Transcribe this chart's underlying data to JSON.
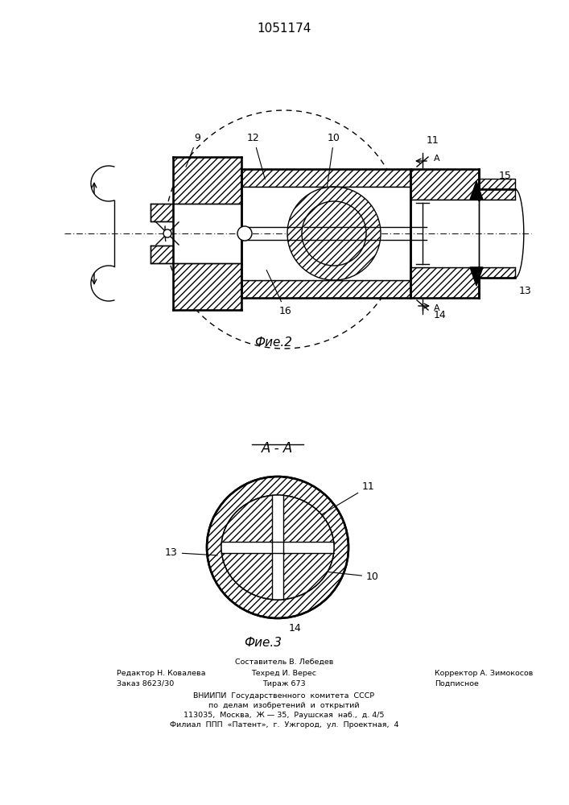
{
  "title": "1051174",
  "fig2_label": "Фие.2",
  "fig3_label": "Фие.3",
  "section_label": "А - А",
  "footer_lines": [
    "Составитель В. Лебедев",
    "Редактор Н. Ковалева",
    "Техред И. Верес",
    "Корректор А. Зимокосов",
    "Заказ 8623/30",
    "Тираж 673",
    "Подписное",
    "ВНИИПИ  Государственного  комитета  СССР",
    "по  делам  изобретений  и  открытий",
    "113035,  Москва,  Ж — 35,  Раушская  наб.,  д. 4/5",
    "Филиал  ППП  «Патент»,  г.  Ужгород,  ул.  Проектная,  4"
  ],
  "bg_color": "#ffffff",
  "line_color": "#000000",
  "lw": 1.0,
  "tlw": 1.8
}
